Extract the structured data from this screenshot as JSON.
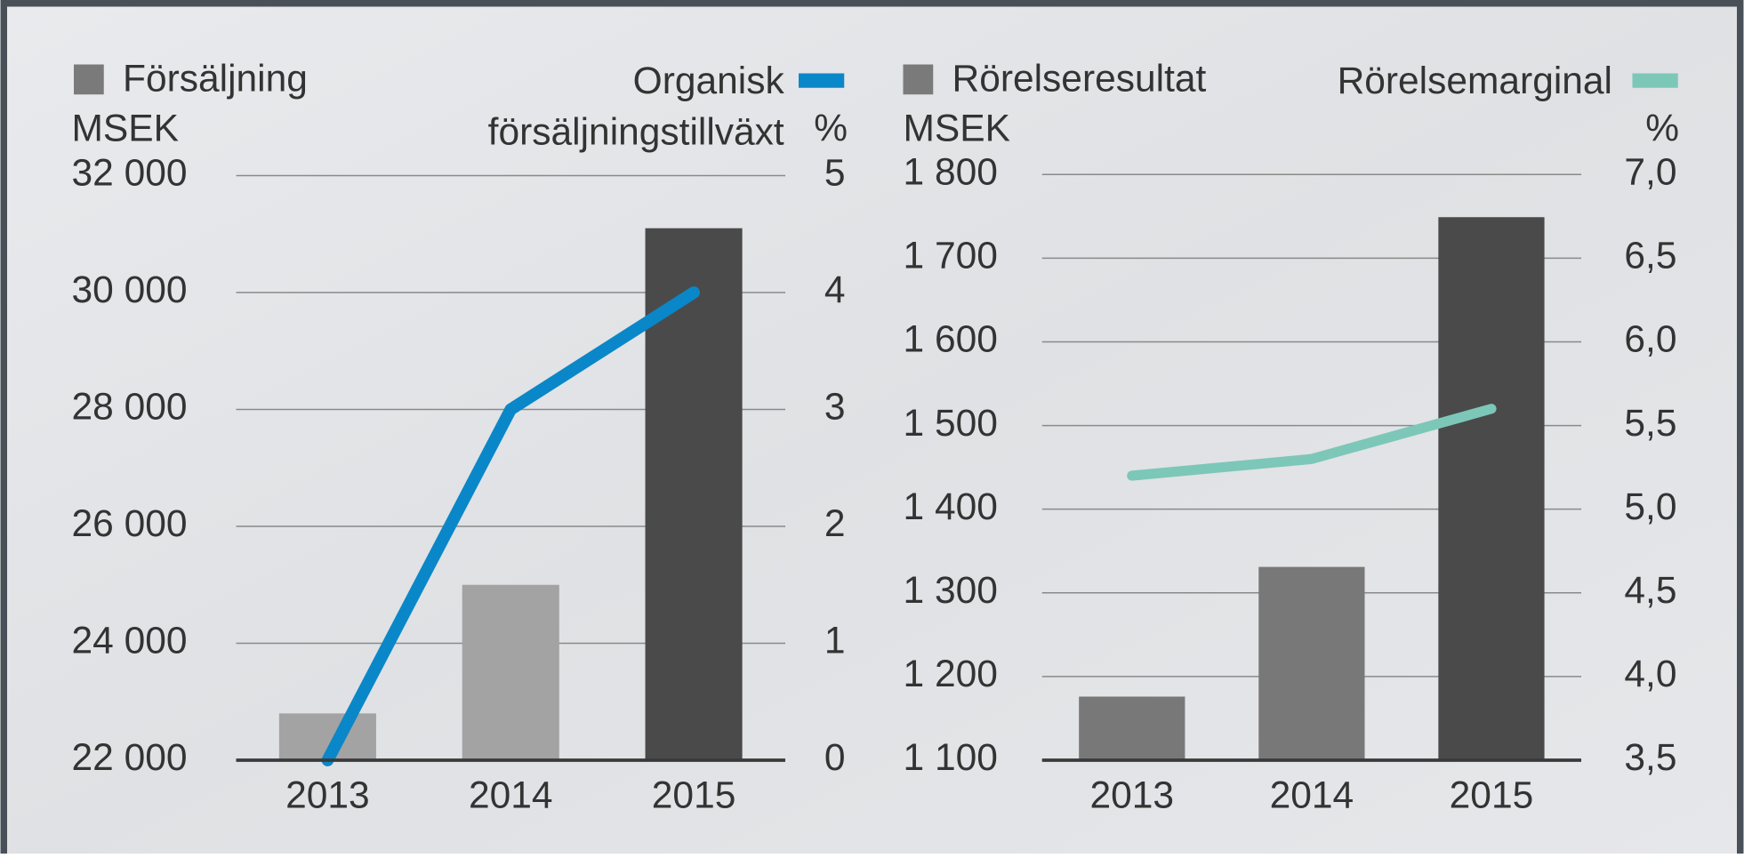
{
  "chart_data": [
    {
      "type": "bar",
      "categories": [
        "2013",
        "2014",
        "2015"
      ],
      "y_label": "MSEK",
      "y2_label": "%",
      "ylim": [
        22000,
        32000
      ],
      "yticks": [
        {
          "value": 22000,
          "label": "22 000"
        },
        {
          "value": 24000,
          "label": "24 000"
        },
        {
          "value": 26000,
          "label": "26 000"
        },
        {
          "value": 28000,
          "label": "28 000"
        },
        {
          "value": 30000,
          "label": "30 000"
        },
        {
          "value": 32000,
          "label": "32 000"
        }
      ],
      "y2lim": [
        0,
        5
      ],
      "y2ticks": [
        0,
        1,
        2,
        3,
        4,
        5
      ],
      "grid": true,
      "series": [
        {
          "name": "Försäljning",
          "type": "bar",
          "color": "#7a7a7a",
          "colors": [
            "#a3a3a3",
            "#a3a3a3",
            "#4a4a4a"
          ],
          "values": [
            22800,
            25000,
            31100
          ]
        },
        {
          "name": "Organisk försäljningstillväxt",
          "type": "line",
          "axis": "y2",
          "color": "#0a87c8",
          "values": [
            0,
            3,
            4
          ]
        }
      ]
    },
    {
      "type": "bar",
      "categories": [
        "2013",
        "2014",
        "2015"
      ],
      "y_label": "MSEK",
      "y2_label": "%",
      "ylim": [
        1100,
        1800
      ],
      "yticks": [
        {
          "value": 1100,
          "label": "1 100"
        },
        {
          "value": 1200,
          "label": "1 200"
        },
        {
          "value": 1300,
          "label": "1 300"
        },
        {
          "value": 1400,
          "label": "1 400"
        },
        {
          "value": 1500,
          "label": "1 500"
        },
        {
          "value": 1600,
          "label": "1 600"
        },
        {
          "value": 1700,
          "label": "1 700"
        },
        {
          "value": 1800,
          "label": "1 800"
        }
      ],
      "y2lim": [
        3.5,
        7.0
      ],
      "y2ticks": [
        {
          "value": 3.5,
          "label": "3,5"
        },
        {
          "value": 4.0,
          "label": "4,0"
        },
        {
          "value": 4.5,
          "label": "4,5"
        },
        {
          "value": 5.0,
          "label": "5,0"
        },
        {
          "value": 5.5,
          "label": "5,5"
        },
        {
          "value": 6.0,
          "label": "6,0"
        },
        {
          "value": 6.5,
          "label": "6,5"
        },
        {
          "value": 7.0,
          "label": "7,0"
        }
      ],
      "grid": true,
      "series": [
        {
          "name": "Rörelseresultat",
          "type": "bar",
          "color": "#7a7a7a",
          "colors": [
            "#787878",
            "#787878",
            "#4a4a4a"
          ],
          "values": [
            1176,
            1331,
            1749
          ]
        },
        {
          "name": "Rörelsemarginal",
          "type": "line",
          "axis": "y2",
          "color": "#7cc7b8",
          "values": [
            5.2,
            5.3,
            5.6
          ]
        }
      ]
    }
  ]
}
